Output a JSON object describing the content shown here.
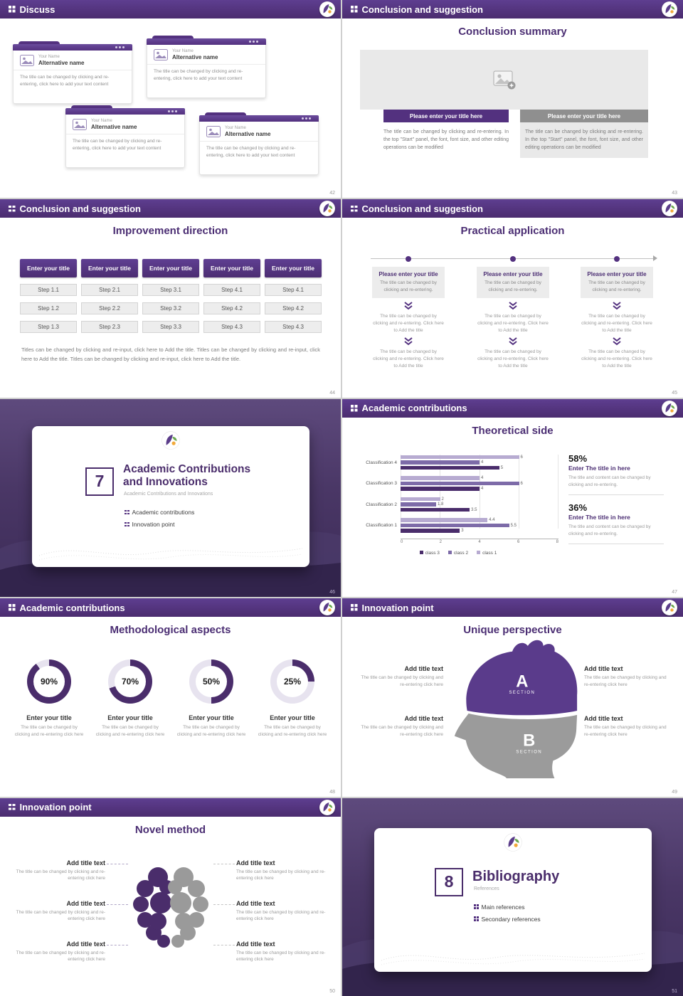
{
  "colors": {
    "header_purple": "#4f2e75",
    "accent_purple": "#53317f",
    "dark_purple": "#4a2d6b",
    "gray_button": "#8f8f8f"
  },
  "slides": [
    {
      "page": "42",
      "header": "Discuss",
      "cards": [
        {
          "name": "Your Name",
          "alt": "Alternative name",
          "body": "The title can be changed by clicking and re-entering, click here to add your text content"
        },
        {
          "name": "Your Name",
          "alt": "Alternative name",
          "body": "The title can be changed by clicking and re-entering, click here to add your text content"
        },
        {
          "name": "Your Name",
          "alt": "Alternative name",
          "body": "The title can be changed by clicking and re-entering, click here to add your text content"
        },
        {
          "name": "Your Name",
          "alt": "Alternative name",
          "body": "The title can be changed by clicking and re-entering, click here to add your text content"
        }
      ]
    },
    {
      "page": "43",
      "header": "Conclusion and suggestion",
      "title": "Conclusion summary",
      "columns": [
        {
          "button": "Please enter your title here",
          "body": "The title can be changed by clicking and re-entering. In the top \"Start\" panel, the font, font size, and other editing operations can be modified"
        },
        {
          "button": "Please enter your title here",
          "body": "The title can be changed by clicking and re-entering. In the top \"Start\" panel, the font, font size, and other editing operations can be modified"
        }
      ]
    },
    {
      "page": "44",
      "header": "Conclusion and suggestion",
      "title": "Improvement direction",
      "columns": [
        {
          "title": "Enter your title",
          "steps": [
            "Step 1.1",
            "Step 1.2",
            "Step 1.3"
          ]
        },
        {
          "title": "Enter your title",
          "steps": [
            "Step 2.1",
            "Step 2.2",
            "Step 2.3"
          ]
        },
        {
          "title": "Enter your title",
          "steps": [
            "Step 3.1",
            "Step 3.2",
            "Step 3.3"
          ]
        },
        {
          "title": "Enter your title",
          "steps": [
            "Step 4.1",
            "Step 4.2",
            "Step 4.3"
          ]
        },
        {
          "title": "Enter your title",
          "steps": [
            "Step 4.1",
            "Step 4.2",
            "Step 4.3"
          ]
        }
      ],
      "caption": "Titles can be changed by clicking and re-input, click here to Add the title. Titles can be changed by clicking and re-input, click here to Add the title. Titles can be changed by clicking and re-input, click here to Add the title."
    },
    {
      "page": "45",
      "header": "Conclusion and suggestion",
      "title": "Practical application",
      "columns": [
        {
          "title": "Please enter your title",
          "subtitle": "The title can be changed by clicking and re-entering.",
          "body1": "The title can be changed by clicking and re-entering. Click here to Add the title",
          "body2": "The title can be changed by clicking and re-entering. Click here to Add the title"
        },
        {
          "title": "Please enter your title",
          "subtitle": "The title can be changed by clicking and re-entering.",
          "body1": "The title can be changed by clicking and re-entering. Click here to Add the title",
          "body2": "The title can be changed by clicking and re-entering. Click here to Add the title"
        },
        {
          "title": "Please enter your title",
          "subtitle": "The title can be changed by clicking and re-entering.",
          "body1": "The title can be changed by clicking and re-entering. Click here to Add the title",
          "body2": "The title can be changed by clicking and re-entering. Click here to Add the title"
        }
      ]
    },
    {
      "page": "46",
      "number": "7",
      "title_line1": "Academic Contributions",
      "title_line2": "and Innovations",
      "subtitle": "Academic Contributions and Innovations",
      "bullets": [
        "Academic contributions",
        "Innovation point"
      ]
    },
    {
      "page": "47",
      "header": "Academic contributions",
      "title": "Theoretical side",
      "chart_data": {
        "type": "bar",
        "orientation": "horizontal",
        "title": "Theoretical side",
        "categories": [
          "Classification 4",
          "Classification 3",
          "Classification 2",
          "Classification 1"
        ],
        "series": [
          {
            "name": "class 1",
            "color": "#b7abd1",
            "values": [
              6,
              4,
              2,
              4.4
            ]
          },
          {
            "name": "class 2",
            "color": "#7d6ba8",
            "values": [
              4,
              6,
              1.8,
              5.5
            ]
          },
          {
            "name": "class 3",
            "color": "#4a2d6b",
            "values": [
              5,
              4,
              3.5,
              3
            ]
          }
        ],
        "xlim": [
          0,
          8
        ],
        "xticks": [
          "0",
          "2",
          "4",
          "6",
          "8"
        ],
        "legend": [
          "class 3",
          "class 2",
          "class 1"
        ],
        "grid": true
      },
      "stats": [
        {
          "percent": "58%",
          "title": "Enter The title in here",
          "desc": "The title and content can be changed by clicking and re-entering."
        },
        {
          "percent": "36%",
          "title": "Enter The title in here",
          "desc": "The title and content can be changed by clicking and re-entering."
        }
      ]
    },
    {
      "page": "48",
      "header": "Academic contributions",
      "title": "Methodological aspects",
      "items": [
        {
          "percent": 90,
          "label": "90%",
          "title": "Enter your title",
          "desc": "The title can be changed by clicking and re-entering click here"
        },
        {
          "percent": 70,
          "label": "70%",
          "title": "Enter your title",
          "desc": "The title can be changed by clicking and re-entering click here"
        },
        {
          "percent": 50,
          "label": "50%",
          "title": "Enter your title",
          "desc": "The title can be changed by clicking and re-entering click here"
        },
        {
          "percent": 25,
          "label": "25%",
          "title": "Enter your title",
          "desc": "The title can be changed by clicking and re-entering click here"
        }
      ]
    },
    {
      "page": "49",
      "header": "Innovation point",
      "title": "Unique perspective",
      "sections": [
        {
          "letter": "A",
          "label": "SECTION"
        },
        {
          "letter": "B",
          "label": "SECTION"
        }
      ],
      "left": [
        {
          "title": "Add title text",
          "desc": "The title can be changed by clicking and re-entering click here"
        },
        {
          "title": "Add title text",
          "desc": "The title can be changed by clicking and re-entering click here"
        }
      ],
      "right": [
        {
          "title": "Add title text",
          "desc": "The title can be changed by clicking and re-entering click here"
        },
        {
          "title": "Add title text",
          "desc": "The title can be changed by clicking and re-entering click here"
        }
      ]
    },
    {
      "page": "50",
      "header": "Innovation point",
      "title": "Novel method",
      "left": [
        {
          "title": "Add title text",
          "desc": "The title can be changed by clicking and re-entering click here"
        },
        {
          "title": "Add title text",
          "desc": "The title can be changed by clicking and re-entering click here"
        },
        {
          "title": "Add title text",
          "desc": "The title can be changed by clicking and re-entering click here"
        }
      ],
      "right": [
        {
          "title": "Add title text",
          "desc": "The title can be changed by clicking and re-entering click here"
        },
        {
          "title": "Add title text",
          "desc": "The title can be changed by clicking and re-entering click here"
        },
        {
          "title": "Add title text",
          "desc": "The title can be changed by clicking and re-entering click here"
        }
      ]
    },
    {
      "page": "51",
      "number": "8",
      "title": "Bibliography",
      "subtitle": "References",
      "bullets": [
        "Main references",
        "Secondary references"
      ]
    }
  ]
}
